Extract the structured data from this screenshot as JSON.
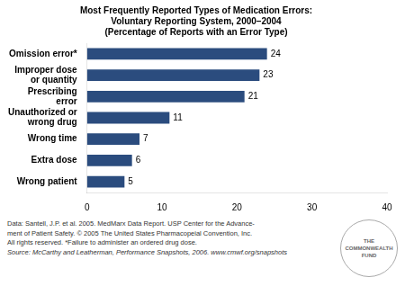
{
  "chart_data": {
    "type": "bar",
    "orientation": "horizontal",
    "title": "Most Frequently Reported Types of Medication Errors:\nVoluntary Reporting System, 2000–2004\n(Percentage of Reports with an Error Type)",
    "categories": [
      "Wrong patient",
      "Extra dose",
      "Wrong time",
      "Unauthorized or\nwrong drug",
      "Prescribing\nerror",
      "Improper dose\nor quantity",
      "Omission error*"
    ],
    "values": [
      5,
      6,
      7,
      11,
      21,
      23,
      24
    ],
    "color": "#2B4C7E",
    "xlim": [
      0,
      40
    ],
    "xticks": [
      0,
      10,
      20,
      30,
      40
    ],
    "grid": false,
    "data_labels": true,
    "annotations": [
      "Data: Santell, J.P. et al. 2005. MedMarx Data Report. USP Center for the Advance-",
      "ment of Patient Safety. © 2005 The United States Pharmacopeial Convention, Inc.",
      "All rights reserved. *Failure to administer an ordered drug dose.",
      "Source: McCarthy and Leatherman, Performance Snapshots, 2006. www.cmwf.org/snapshots",
      "THE\nCOMMONWEALTH\nFUND"
    ]
  }
}
